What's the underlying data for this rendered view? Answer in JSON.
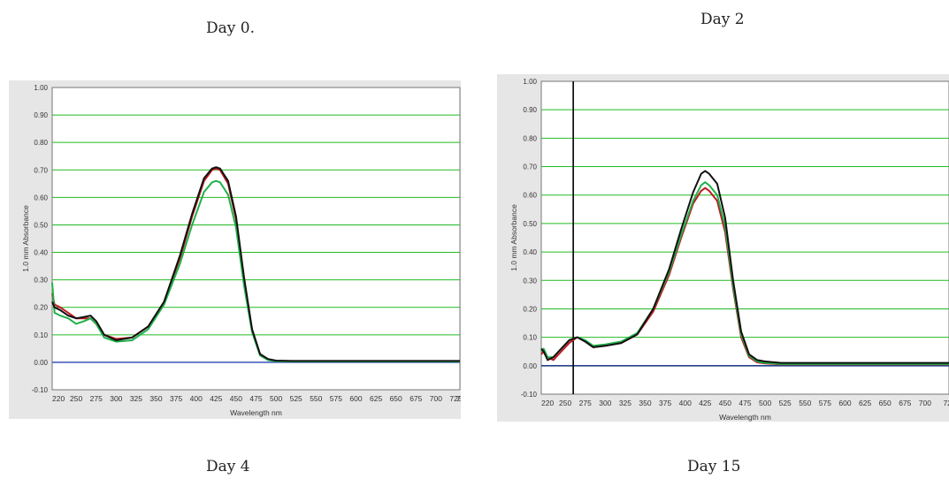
{
  "captions": {
    "top_left": "Day 0.",
    "top_right": "Day 2",
    "bottom_left": "Day 4",
    "bottom_right": "Day 15"
  },
  "chart_data": [
    {
      "type": "line",
      "title": "",
      "xlabel": "Wavelength nm",
      "ylabel": "1.0 mm Absorbance",
      "xlim": [
        220,
        730
      ],
      "ylim": [
        -0.1,
        1.0
      ],
      "x_ticks": [
        "220",
        "250",
        "275",
        "300",
        "325",
        "350",
        "375",
        "400",
        "425",
        "450",
        "475",
        "500",
        "525",
        "550",
        "575",
        "600",
        "625",
        "650",
        "675",
        "700",
        "725",
        "7"
      ],
      "y_ticks": [
        "-0.10",
        "0.00",
        "0.10",
        "0.20",
        "0.30",
        "0.40",
        "0.50",
        "0.60",
        "0.70",
        "0.80",
        "0.90",
        "1.00"
      ],
      "grid": true,
      "baseline": 0.0,
      "colors": {
        "gridline": "#22bb22",
        "baseline": "#4a5fc1"
      },
      "series": [
        {
          "color": "#c0181f",
          "x": [
            220,
            223,
            230,
            240,
            250,
            260,
            268,
            275,
            285,
            300,
            320,
            340,
            360,
            380,
            395,
            410,
            420,
            425,
            430,
            440,
            450,
            460,
            470,
            480,
            490,
            500,
            520,
            550,
            600,
            650,
            700,
            730
          ],
          "y": [
            0.25,
            0.21,
            0.2,
            0.18,
            0.16,
            0.16,
            0.16,
            0.14,
            0.1,
            0.085,
            0.09,
            0.13,
            0.22,
            0.38,
            0.53,
            0.66,
            0.7,
            0.705,
            0.7,
            0.65,
            0.52,
            0.3,
            0.12,
            0.03,
            0.01,
            0.005,
            0.003,
            0.003,
            0.003,
            0.003,
            0.003,
            0.003
          ]
        },
        {
          "color": "#1fb04a",
          "x": [
            220,
            223,
            230,
            240,
            250,
            260,
            268,
            275,
            285,
            300,
            320,
            340,
            360,
            380,
            395,
            410,
            420,
            425,
            430,
            440,
            450,
            460,
            470,
            480,
            490,
            500,
            520,
            550,
            600,
            650,
            700,
            730
          ],
          "y": [
            0.29,
            0.18,
            0.17,
            0.16,
            0.14,
            0.15,
            0.16,
            0.14,
            0.09,
            0.075,
            0.08,
            0.12,
            0.21,
            0.36,
            0.5,
            0.62,
            0.655,
            0.66,
            0.655,
            0.61,
            0.49,
            0.28,
            0.11,
            0.025,
            0.008,
            0.004,
            0.003,
            0.003,
            0.003,
            0.003,
            0.003,
            0.003
          ]
        },
        {
          "color": "#111111",
          "x": [
            220,
            223,
            230,
            240,
            250,
            260,
            268,
            275,
            285,
            300,
            320,
            340,
            360,
            380,
            395,
            410,
            420,
            425,
            430,
            440,
            450,
            460,
            470,
            480,
            490,
            500,
            520,
            550,
            600,
            650,
            700,
            730
          ],
          "y": [
            0.22,
            0.2,
            0.19,
            0.17,
            0.16,
            0.165,
            0.17,
            0.15,
            0.1,
            0.08,
            0.09,
            0.13,
            0.22,
            0.39,
            0.54,
            0.67,
            0.705,
            0.71,
            0.705,
            0.66,
            0.53,
            0.31,
            0.12,
            0.03,
            0.012,
            0.006,
            0.005,
            0.005,
            0.005,
            0.005,
            0.005,
            0.005
          ]
        }
      ]
    },
    {
      "type": "line",
      "title": "",
      "xlabel": "Wavelength nm",
      "ylabel": "1.0 mm Absorbance",
      "xlim": [
        220,
        730
      ],
      "ylim": [
        -0.1,
        1.0
      ],
      "x_ticks": [
        "220",
        "250",
        "275",
        "300",
        "325",
        "350",
        "375",
        "400",
        "425",
        "450",
        "475",
        "500",
        "525",
        "550",
        "575",
        "600",
        "625",
        "650",
        "675",
        "700",
        "72"
      ],
      "y_ticks": [
        "-0.10",
        "0.00",
        "0.10",
        "0.20",
        "0.30",
        "0.40",
        "0.50",
        "0.60",
        "0.70",
        "0.80",
        "0.90",
        "1.00"
      ],
      "grid": true,
      "baseline": 0.0,
      "marker_x": 260,
      "colors": {
        "gridline": "#22bb22",
        "baseline": "#24408a"
      },
      "series": [
        {
          "color": "#c0181f",
          "x": [
            220,
            223,
            228,
            235,
            245,
            255,
            265,
            275,
            285,
            300,
            320,
            340,
            360,
            380,
            395,
            410,
            420,
            425,
            430,
            440,
            450,
            460,
            470,
            480,
            490,
            500,
            520,
            550,
            600,
            650,
            700,
            730
          ],
          "y": [
            0.04,
            0.05,
            0.03,
            0.02,
            0.05,
            0.08,
            0.1,
            0.085,
            0.065,
            0.07,
            0.08,
            0.11,
            0.19,
            0.32,
            0.45,
            0.57,
            0.615,
            0.625,
            0.615,
            0.58,
            0.47,
            0.27,
            0.1,
            0.03,
            0.012,
            0.008,
            0.005,
            0.005,
            0.005,
            0.005,
            0.005,
            0.005
          ]
        },
        {
          "color": "#1fb04a",
          "x": [
            220,
            223,
            228,
            235,
            245,
            255,
            265,
            275,
            285,
            300,
            320,
            340,
            360,
            380,
            395,
            410,
            420,
            425,
            430,
            440,
            450,
            460,
            470,
            480,
            490,
            500,
            520,
            550,
            600,
            650,
            700,
            730
          ],
          "y": [
            0.05,
            0.06,
            0.03,
            0.03,
            0.06,
            0.09,
            0.1,
            0.09,
            0.07,
            0.075,
            0.085,
            0.115,
            0.2,
            0.33,
            0.46,
            0.58,
            0.635,
            0.645,
            0.635,
            0.6,
            0.49,
            0.28,
            0.11,
            0.035,
            0.015,
            0.01,
            0.006,
            0.006,
            0.006,
            0.006,
            0.006,
            0.006
          ]
        },
        {
          "color": "#111111",
          "x": [
            220,
            223,
            228,
            235,
            245,
            255,
            265,
            275,
            285,
            300,
            320,
            340,
            360,
            380,
            395,
            410,
            420,
            425,
            430,
            440,
            450,
            460,
            470,
            480,
            490,
            500,
            520,
            550,
            600,
            650,
            700,
            730
          ],
          "y": [
            0.06,
            0.05,
            0.02,
            0.03,
            0.06,
            0.09,
            0.1,
            0.085,
            0.065,
            0.07,
            0.08,
            0.11,
            0.2,
            0.34,
            0.48,
            0.61,
            0.675,
            0.685,
            0.675,
            0.64,
            0.52,
            0.3,
            0.12,
            0.04,
            0.02,
            0.015,
            0.01,
            0.01,
            0.01,
            0.01,
            0.01,
            0.01
          ]
        }
      ]
    }
  ]
}
